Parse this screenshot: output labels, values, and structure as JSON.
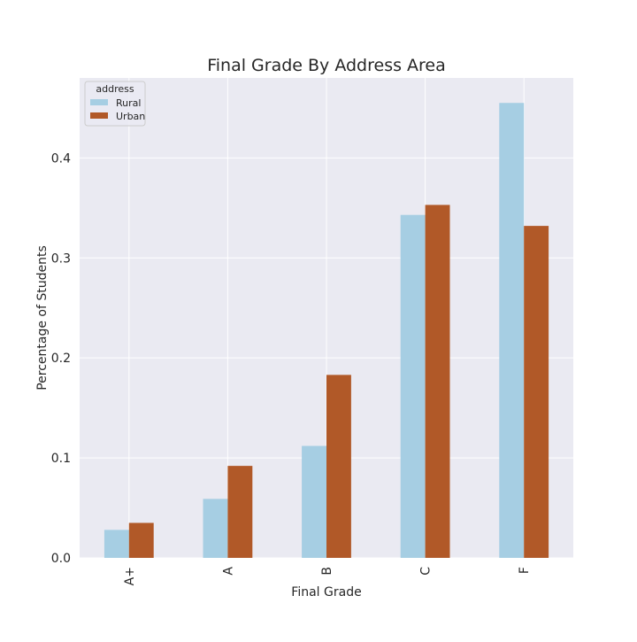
{
  "chart_data": {
    "type": "bar",
    "title": "Final Grade By Address Area",
    "xlabel": "Final Grade",
    "ylabel": "Percentage of Students",
    "categories": [
      "A+",
      "A",
      "B",
      "C",
      "F"
    ],
    "series": [
      {
        "name": "Rural",
        "color": "#a6cee3",
        "values": [
          0.028,
          0.059,
          0.112,
          0.343,
          0.455
        ]
      },
      {
        "name": "Urban",
        "color": "#b15928",
        "values": [
          0.035,
          0.092,
          0.183,
          0.353,
          0.332
        ]
      }
    ],
    "ylim": [
      0,
      0.48
    ],
    "yticks": [
      0.0,
      0.1,
      0.2,
      0.3,
      0.4
    ],
    "ytick_labels": [
      "0.0",
      "0.1",
      "0.2",
      "0.3",
      "0.4"
    ],
    "legend": {
      "title": "address",
      "placement": "upper-left"
    },
    "grid": true,
    "background": "#eaeaf2",
    "grid_color": "#ffffff"
  }
}
